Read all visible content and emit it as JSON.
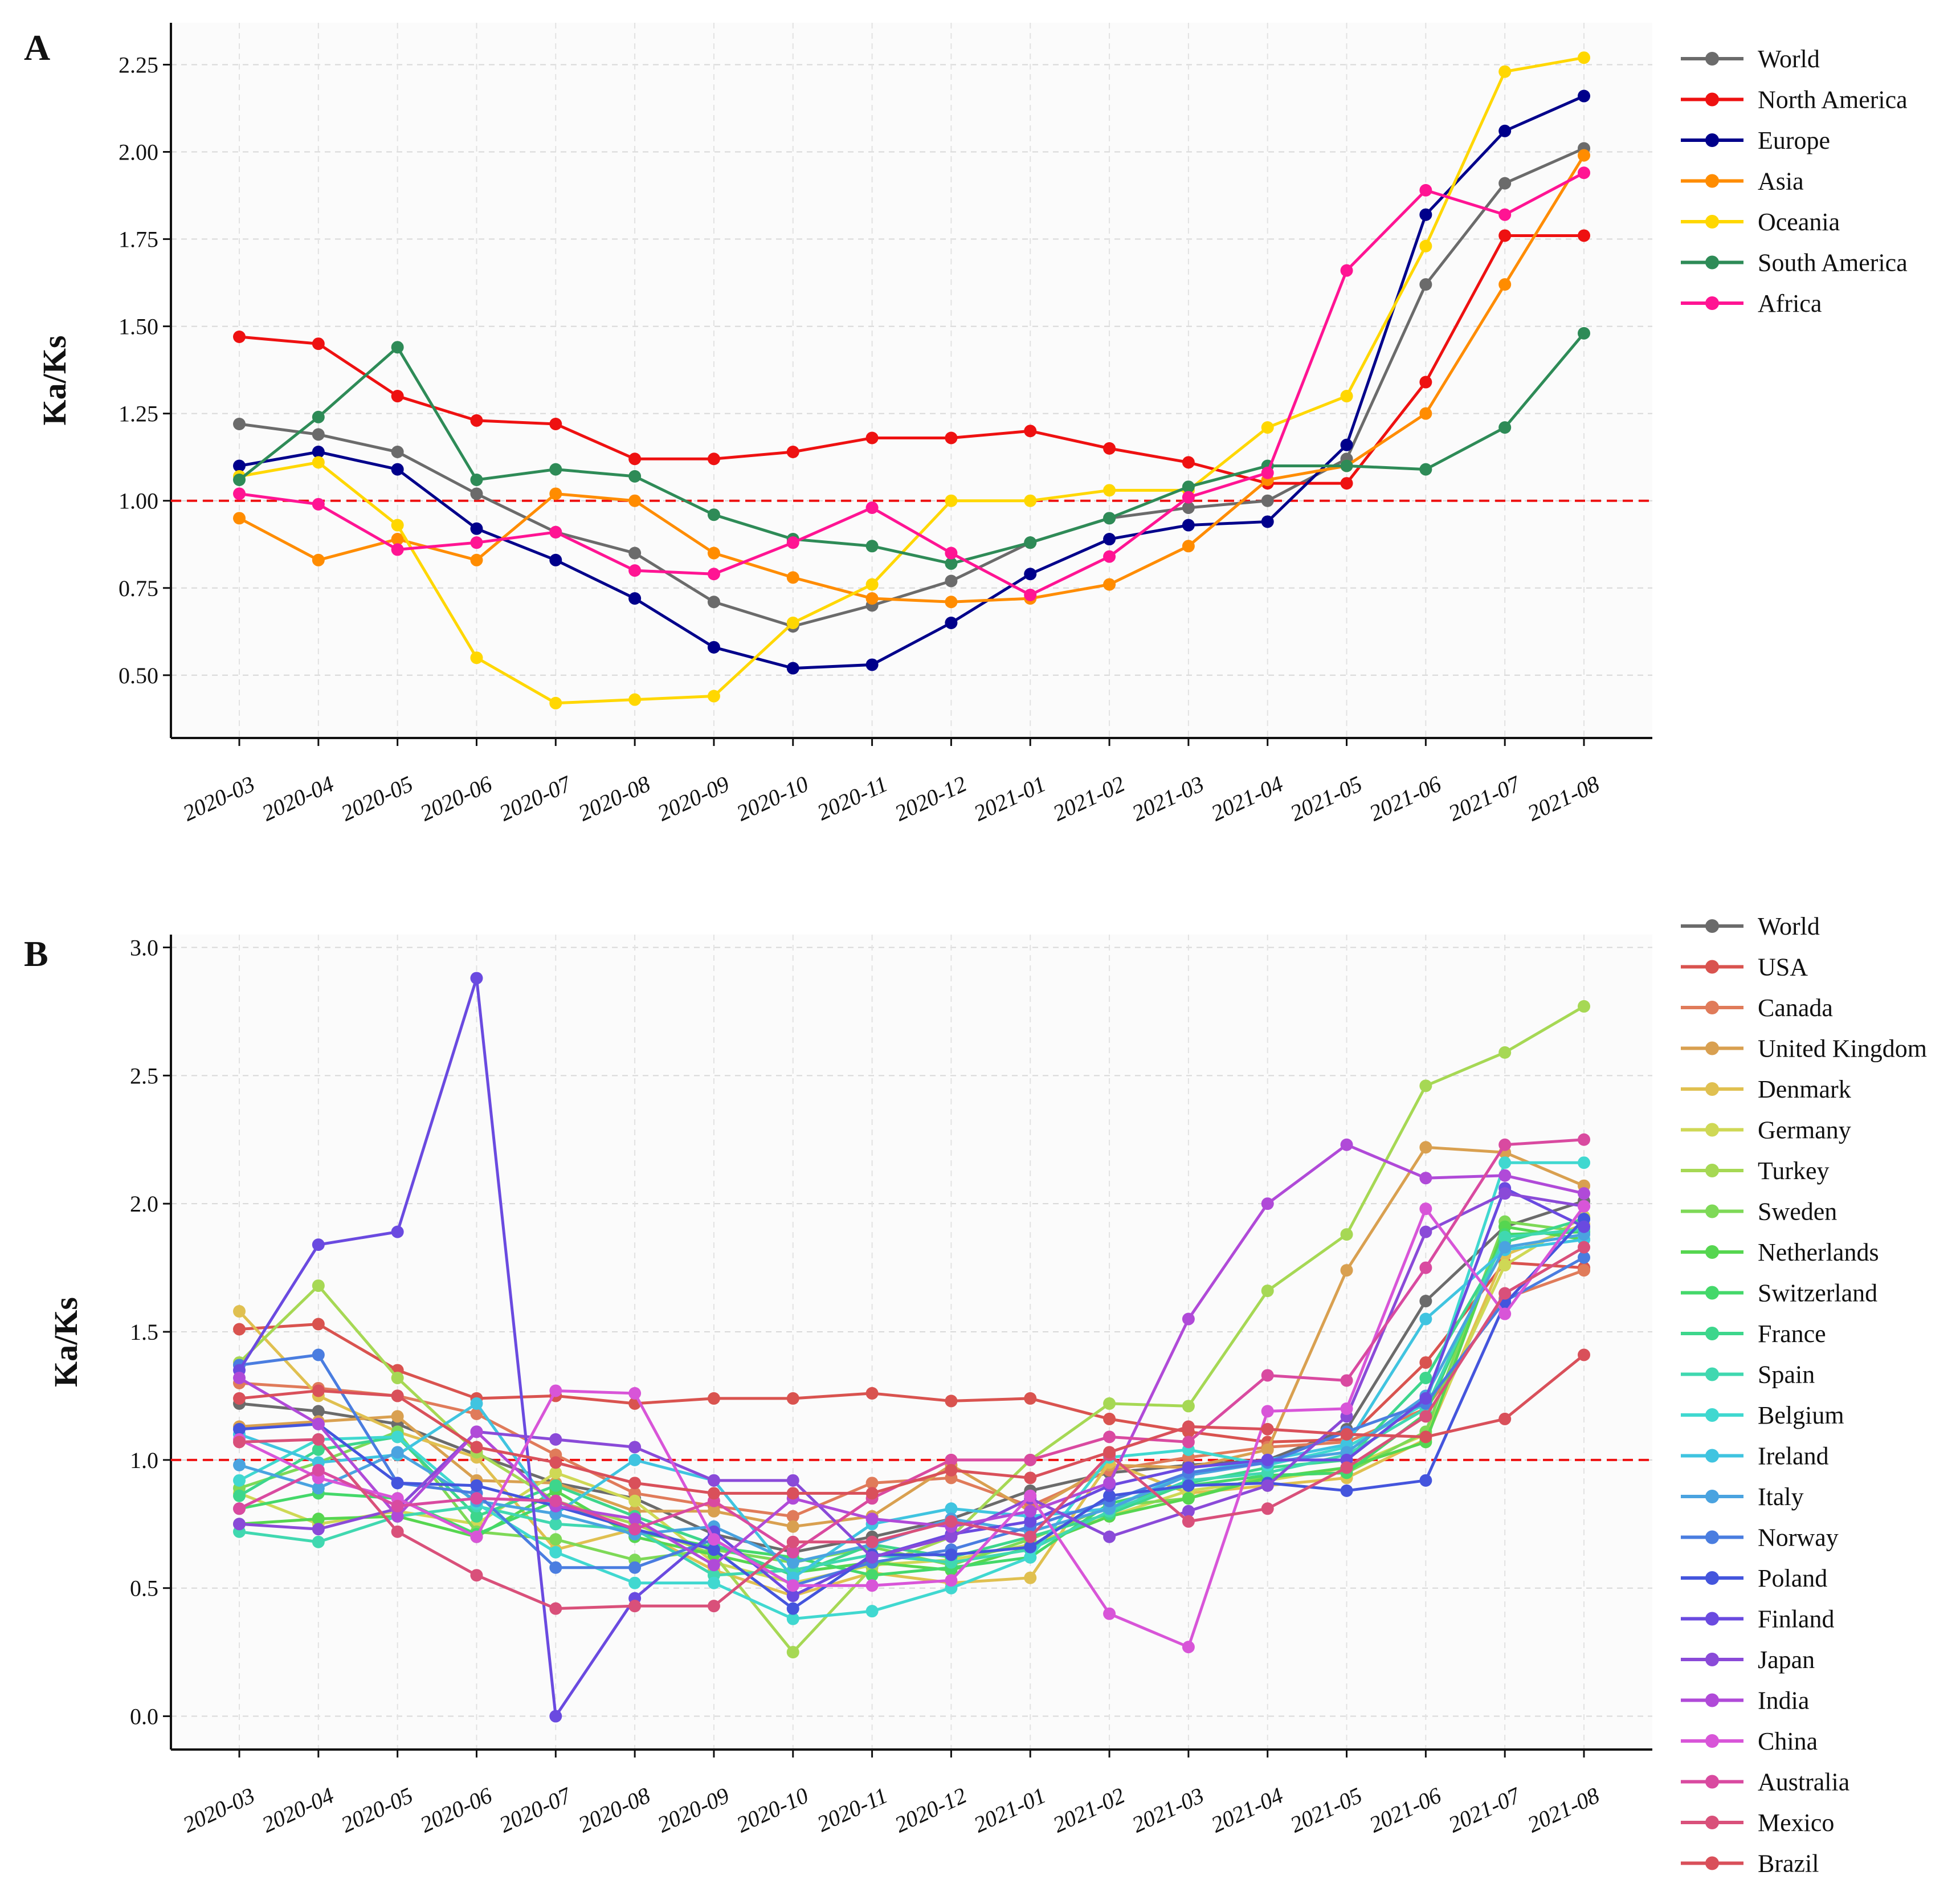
{
  "chart_data": [
    {
      "type": "line",
      "panel_label": "A",
      "ylabel": "Ka/Ks",
      "xlabel": "",
      "grid": true,
      "legend_position": "right",
      "ylim": [
        0.32,
        2.37
      ],
      "yticks": [
        "0.50",
        "0.75",
        "1.00",
        "1.25",
        "1.50",
        "1.75",
        "2.00",
        "2.25"
      ],
      "ytick_values": [
        0.5,
        0.75,
        1.0,
        1.25,
        1.5,
        1.75,
        2.0,
        2.25
      ],
      "reference_line": 1.0,
      "reference_color": "#ee1111",
      "categories": [
        "2020-03",
        "2020-04",
        "2020-05",
        "2020-06",
        "2020-07",
        "2020-08",
        "2020-09",
        "2020-10",
        "2020-11",
        "2020-12",
        "2021-01",
        "2021-02",
        "2021-03",
        "2021-04",
        "2021-05",
        "2021-06",
        "2021-07",
        "2021-08"
      ],
      "series": [
        {
          "name": "World",
          "color": "#6b6b6b",
          "values": [
            1.22,
            1.19,
            1.14,
            1.02,
            0.91,
            0.85,
            0.71,
            0.64,
            0.7,
            0.77,
            0.88,
            0.95,
            0.98,
            1.0,
            1.12,
            1.62,
            1.91,
            2.01
          ]
        },
        {
          "name": "North America",
          "color": "#ee1111",
          "values": [
            1.47,
            1.45,
            1.3,
            1.23,
            1.22,
            1.12,
            1.12,
            1.14,
            1.18,
            1.18,
            1.2,
            1.15,
            1.11,
            1.05,
            1.05,
            1.34,
            1.76,
            1.76
          ]
        },
        {
          "name": "Europe",
          "color": "#00008b",
          "values": [
            1.1,
            1.14,
            1.09,
            0.92,
            0.83,
            0.72,
            0.58,
            0.52,
            0.53,
            0.65,
            0.79,
            0.89,
            0.93,
            0.94,
            1.16,
            1.82,
            2.06,
            2.16
          ]
        },
        {
          "name": "Asia",
          "color": "#ff8c00",
          "values": [
            0.95,
            0.83,
            0.89,
            0.83,
            1.02,
            1.0,
            0.85,
            0.78,
            0.72,
            0.71,
            0.72,
            0.76,
            0.87,
            1.06,
            1.1,
            1.25,
            1.62,
            1.99
          ]
        },
        {
          "name": "Oceania",
          "color": "#ffd700",
          "values": [
            1.07,
            1.11,
            0.93,
            0.55,
            0.42,
            0.43,
            0.44,
            0.65,
            0.76,
            1.0,
            1.0,
            1.03,
            1.03,
            1.21,
            1.3,
            1.73,
            2.23,
            2.27
          ]
        },
        {
          "name": "South America",
          "color": "#2e8b57",
          "values": [
            1.06,
            1.24,
            1.44,
            1.06,
            1.09,
            1.07,
            0.96,
            0.89,
            0.87,
            0.82,
            0.88,
            0.95,
            1.04,
            1.1,
            1.1,
            1.09,
            1.21,
            1.48
          ]
        },
        {
          "name": "Africa",
          "color": "#ff1493",
          "values": [
            1.02,
            0.99,
            0.86,
            0.88,
            0.91,
            0.8,
            0.79,
            0.88,
            0.98,
            0.85,
            0.73,
            0.84,
            1.01,
            1.08,
            1.66,
            1.89,
            1.82,
            1.94
          ]
        }
      ]
    },
    {
      "type": "line",
      "panel_label": "B",
      "ylabel": "Ka/Ks",
      "xlabel": "",
      "grid": true,
      "legend_position": "right",
      "ylim": [
        -0.13,
        3.05
      ],
      "yticks": [
        "0.0",
        "0.5",
        "1.0",
        "1.5",
        "2.0",
        "2.5",
        "3.0"
      ],
      "ytick_values": [
        0.0,
        0.5,
        1.0,
        1.5,
        2.0,
        2.5,
        3.0
      ],
      "reference_line": 1.0,
      "reference_color": "#ee1111",
      "categories": [
        "2020-03",
        "2020-04",
        "2020-05",
        "2020-06",
        "2020-07",
        "2020-08",
        "2020-09",
        "2020-10",
        "2020-11",
        "2020-12",
        "2021-01",
        "2021-02",
        "2021-03",
        "2021-04",
        "2021-05",
        "2021-06",
        "2021-07",
        "2021-08"
      ],
      "series": [
        {
          "name": "World",
          "color": "#6b6b6b",
          "values": [
            1.22,
            1.19,
            1.14,
            1.02,
            0.91,
            0.85,
            0.71,
            0.64,
            0.7,
            0.77,
            0.88,
            0.95,
            0.98,
            1.0,
            1.12,
            1.62,
            1.91,
            2.01
          ]
        },
        {
          "name": "USA",
          "color": "#d9534f",
          "values": [
            1.51,
            1.53,
            1.35,
            1.24,
            1.25,
            1.22,
            1.24,
            1.24,
            1.26,
            1.23,
            1.24,
            1.16,
            1.11,
            1.07,
            1.08,
            1.38,
            1.77,
            1.75
          ]
        },
        {
          "name": "Canada",
          "color": "#e07b5a",
          "values": [
            1.3,
            1.28,
            1.25,
            1.18,
            1.02,
            0.87,
            0.82,
            0.78,
            0.91,
            0.93,
            0.82,
            0.96,
            1.01,
            1.05,
            1.07,
            1.2,
            1.63,
            1.74
          ]
        },
        {
          "name": "United Kingdom",
          "color": "#d9a050",
          "values": [
            1.13,
            1.15,
            1.17,
            0.92,
            0.91,
            0.8,
            0.8,
            0.74,
            0.78,
            0.98,
            0.8,
            0.98,
            0.97,
            1.04,
            1.74,
            2.22,
            2.2,
            2.07
          ]
        },
        {
          "name": "Denmark",
          "color": "#e0c050",
          "values": [
            1.58,
            1.25,
            1.11,
            1.01,
            0.65,
            0.73,
            0.57,
            0.47,
            0.56,
            0.52,
            0.54,
            0.99,
            0.87,
            0.9,
            0.93,
            1.08,
            1.8,
            1.92
          ]
        },
        {
          "name": "Germany",
          "color": "#cfd855",
          "values": [
            0.87,
            0.75,
            0.8,
            0.75,
            0.95,
            0.84,
            0.6,
            0.52,
            0.59,
            0.61,
            0.67,
            0.78,
            0.88,
            0.92,
            0.97,
            1.1,
            1.76,
            1.95
          ]
        },
        {
          "name": "Turkey",
          "color": "#a6d854",
          "values": [
            1.38,
            1.68,
            1.32,
            1.03,
            0.84,
            0.75,
            0.63,
            0.25,
            0.58,
            0.7,
            1.0,
            1.22,
            1.21,
            1.66,
            1.88,
            2.46,
            2.59,
            2.77
          ]
        },
        {
          "name": "Sweden",
          "color": "#7ed957",
          "values": [
            0.89,
            0.99,
            1.11,
            0.72,
            0.69,
            0.61,
            0.65,
            0.6,
            0.66,
            0.59,
            0.69,
            0.82,
            0.85,
            0.94,
            0.95,
            1.11,
            1.93,
            1.89
          ]
        },
        {
          "name": "Netherlands",
          "color": "#56d650",
          "values": [
            0.75,
            0.77,
            0.78,
            0.7,
            0.88,
            0.7,
            0.63,
            0.56,
            0.6,
            0.57,
            0.66,
            0.78,
            0.85,
            0.93,
            0.97,
            1.07,
            1.91,
            1.86
          ]
        },
        {
          "name": "Switzerland",
          "color": "#44d86a",
          "values": [
            0.81,
            0.87,
            0.85,
            0.71,
            0.84,
            0.72,
            0.66,
            0.62,
            0.55,
            0.58,
            0.62,
            0.83,
            0.9,
            0.94,
            0.95,
            1.18,
            1.88,
            1.89
          ]
        },
        {
          "name": "France",
          "color": "#3dd68c",
          "values": [
            0.86,
            1.04,
            1.09,
            0.78,
            0.9,
            0.78,
            0.67,
            0.55,
            0.67,
            0.62,
            0.7,
            0.79,
            0.91,
            0.97,
            1.0,
            1.32,
            1.85,
            1.94
          ]
        },
        {
          "name": "Spain",
          "color": "#40d8b0",
          "values": [
            0.72,
            0.68,
            0.78,
            0.82,
            0.75,
            0.73,
            0.55,
            0.57,
            0.63,
            0.6,
            0.65,
            0.8,
            0.92,
            0.95,
            1.02,
            1.2,
            1.87,
            1.9
          ]
        },
        {
          "name": "Belgium",
          "color": "#40d8d0",
          "values": [
            0.92,
            1.08,
            1.09,
            0.83,
            0.64,
            0.52,
            0.52,
            0.38,
            0.41,
            0.5,
            0.62,
            1.01,
            1.04,
            0.98,
            1.05,
            1.22,
            2.16,
            2.16
          ]
        },
        {
          "name": "Ireland",
          "color": "#40c4e0",
          "values": [
            1.1,
            0.99,
            1.02,
            1.22,
            0.79,
            1.0,
            0.92,
            0.54,
            0.75,
            0.81,
            0.78,
            0.81,
            0.95,
            1.0,
            1.06,
            1.55,
            1.82,
            1.86
          ]
        },
        {
          "name": "Italy",
          "color": "#4aa3e0",
          "values": [
            0.98,
            0.89,
            1.03,
            0.84,
            0.79,
            0.71,
            0.74,
            0.6,
            0.67,
            0.77,
            0.72,
            0.81,
            0.94,
            0.99,
            1.03,
            1.25,
            1.83,
            1.88
          ]
        },
        {
          "name": "Norway",
          "color": "#4a7de0",
          "values": [
            1.37,
            1.41,
            0.91,
            0.87,
            0.58,
            0.58,
            0.69,
            0.51,
            0.6,
            0.65,
            0.74,
            0.84,
            0.95,
            0.99,
            1.11,
            1.22,
            1.62,
            1.79
          ]
        },
        {
          "name": "Poland",
          "color": "#4455dd",
          "values": [
            1.12,
            1.14,
            0.91,
            0.9,
            0.82,
            0.73,
            0.65,
            0.42,
            0.63,
            0.63,
            0.66,
            0.86,
            0.9,
            0.91,
            0.88,
            0.92,
            1.61,
            1.94
          ]
        },
        {
          "name": "Finland",
          "color": "#6a4ae0",
          "values": [
            1.35,
            1.84,
            1.89,
            2.88,
            0.0,
            0.46,
            0.72,
            0.47,
            0.62,
            0.71,
            0.76,
            0.9,
            0.97,
            1.0,
            1.0,
            1.24,
            2.06,
            1.91
          ]
        },
        {
          "name": "Japan",
          "color": "#8a4ad8",
          "values": [
            0.75,
            0.73,
            0.81,
            1.11,
            1.08,
            1.05,
            0.92,
            0.92,
            0.62,
            0.7,
            0.85,
            0.7,
            0.8,
            0.9,
            1.17,
            1.89,
            2.04,
            1.99
          ]
        },
        {
          "name": "India",
          "color": "#b04ad8",
          "values": [
            1.32,
            1.14,
            0.78,
            1.11,
            0.82,
            0.77,
            0.59,
            0.85,
            0.77,
            0.74,
            0.8,
            0.91,
            1.55,
            2.0,
            2.23,
            2.1,
            2.11,
            2.04
          ]
        },
        {
          "name": "China",
          "color": "#d855d8",
          "values": [
            1.08,
            0.93,
            0.85,
            0.7,
            1.27,
            1.26,
            0.69,
            0.51,
            0.51,
            0.53,
            0.86,
            0.4,
            0.27,
            1.19,
            1.2,
            1.98,
            1.57,
            1.99
          ]
        },
        {
          "name": "Australia",
          "color": "#d94aa0",
          "values": [
            0.81,
            0.96,
            0.82,
            0.85,
            0.84,
            0.73,
            0.84,
            0.64,
            0.85,
            1.0,
            1.0,
            1.09,
            1.07,
            1.33,
            1.31,
            1.75,
            2.23,
            2.25
          ]
        },
        {
          "name": "Mexico",
          "color": "#d9507a",
          "values": [
            1.07,
            1.08,
            0.72,
            0.55,
            0.42,
            0.43,
            0.43,
            0.68,
            0.68,
            0.76,
            0.7,
            1.02,
            0.76,
            0.81,
            0.97,
            1.17,
            1.65,
            1.83
          ]
        },
        {
          "name": "Brazil",
          "color": "#d9505a",
          "values": [
            1.24,
            1.27,
            1.25,
            1.05,
            0.99,
            0.91,
            0.87,
            0.87,
            0.87,
            0.96,
            0.93,
            1.03,
            1.13,
            1.12,
            1.1,
            1.09,
            1.16,
            1.41
          ]
        }
      ]
    }
  ]
}
